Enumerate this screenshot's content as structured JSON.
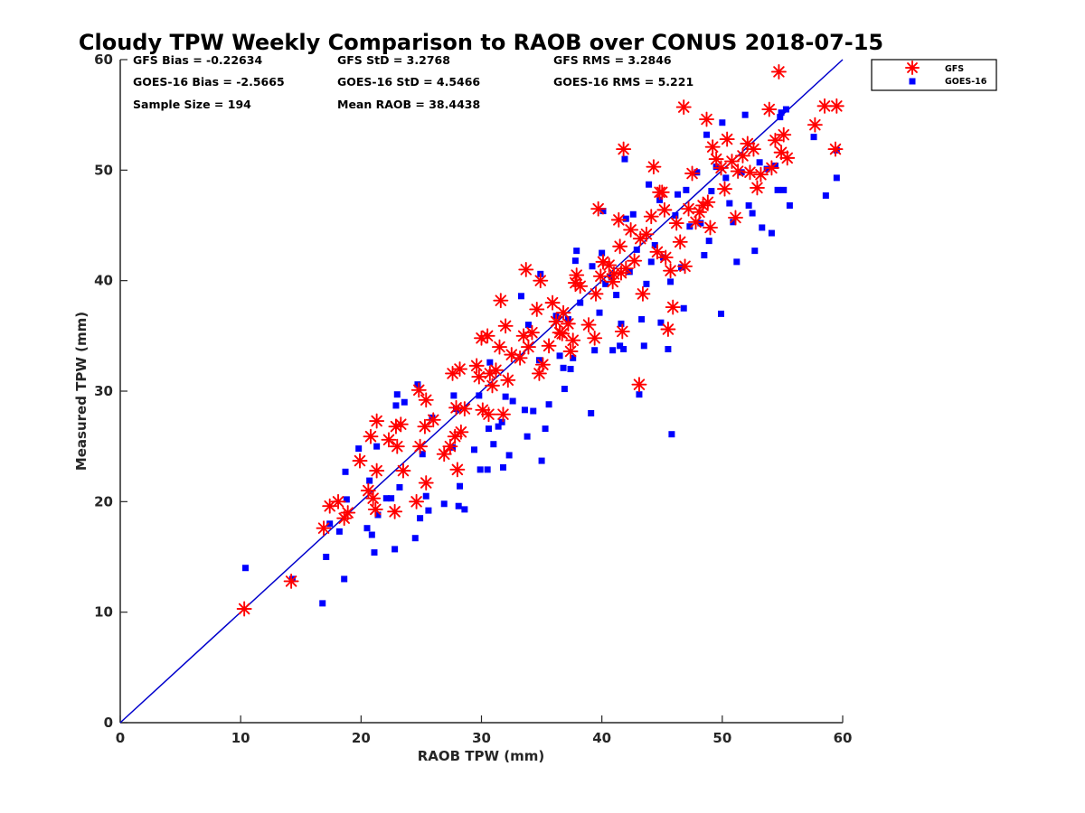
{
  "stats": {
    "gfs_bias": "GFS Bias = -0.22634",
    "gfs_std": "GFS StD = 3.2768",
    "gfs_rms": "GFS RMS = 3.2846",
    "goes_bias": "GOES-16 Bias = -2.5665",
    "goes_std": "GOES-16 StD = 4.5466",
    "goes_rms": "GOES-16 RMS = 5.221",
    "sample_size": "Sample Size = 194",
    "mean_raob": "Mean RAOB = 38.4438"
  },
  "colors": {
    "gfs": "#ff0000",
    "goes": "#0000ff",
    "line": "#0000cc",
    "axis": "#262626"
  },
  "chart_data": {
    "type": "scatter",
    "title": "Cloudy TPW Weekly Comparison to RAOB over CONUS 2018-07-15",
    "xlabel": "RAOB TPW (mm)",
    "ylabel": "Measured TPW (mm)",
    "xlim": [
      0,
      60
    ],
    "ylim": [
      0,
      60
    ],
    "xticks": [
      0,
      10,
      20,
      30,
      40,
      50,
      60
    ],
    "yticks": [
      0,
      10,
      20,
      30,
      40,
      50,
      60
    ],
    "grid": false,
    "legend_position": "top-right, outside plot area",
    "reference_line": {
      "from": [
        0,
        0
      ],
      "to": [
        60,
        60
      ],
      "label": "1:1"
    },
    "series": [
      {
        "name": "GFS",
        "marker": "asterisk",
        "color": "#ff0000",
        "points": [
          [
            10.3,
            10.3
          ],
          [
            14.2,
            12.8
          ],
          [
            16.9,
            17.6
          ],
          [
            17.4,
            19.6
          ],
          [
            18.1,
            20.0
          ],
          [
            18.6,
            18.5
          ],
          [
            18.9,
            19.0
          ],
          [
            19.9,
            23.7
          ],
          [
            20.6,
            21.0
          ],
          [
            20.8,
            25.9
          ],
          [
            21.0,
            20.3
          ],
          [
            21.2,
            19.3
          ],
          [
            21.3,
            27.3
          ],
          [
            21.3,
            22.8
          ],
          [
            22.3,
            25.6
          ],
          [
            22.8,
            19.1
          ],
          [
            22.9,
            26.8
          ],
          [
            23.0,
            25.0
          ],
          [
            23.3,
            27.0
          ],
          [
            23.5,
            22.8
          ],
          [
            24.6,
            20.0
          ],
          [
            24.8,
            30.1
          ],
          [
            24.9,
            25.0
          ],
          [
            25.3,
            26.8
          ],
          [
            25.4,
            29.2
          ],
          [
            25.4,
            21.7
          ],
          [
            26.0,
            27.4
          ],
          [
            26.9,
            24.3
          ],
          [
            27.4,
            25.0
          ],
          [
            27.6,
            31.6
          ],
          [
            27.8,
            25.9
          ],
          [
            27.9,
            28.5
          ],
          [
            28.0,
            22.9
          ],
          [
            28.2,
            32.0
          ],
          [
            28.3,
            26.3
          ],
          [
            28.6,
            28.4
          ],
          [
            29.6,
            32.3
          ],
          [
            29.8,
            31.3
          ],
          [
            30.0,
            34.8
          ],
          [
            30.1,
            28.3
          ],
          [
            30.5,
            35.0
          ],
          [
            30.6,
            27.9
          ],
          [
            30.7,
            31.6
          ],
          [
            30.9,
            30.5
          ],
          [
            31.2,
            31.9
          ],
          [
            31.5,
            34.0
          ],
          [
            31.6,
            38.2
          ],
          [
            31.8,
            27.9
          ],
          [
            32.0,
            35.9
          ],
          [
            32.2,
            31.0
          ],
          [
            32.5,
            33.3
          ],
          [
            33.2,
            33.0
          ],
          [
            33.5,
            35.0
          ],
          [
            33.7,
            41.0
          ],
          [
            33.9,
            34.0
          ],
          [
            34.2,
            35.3
          ],
          [
            34.6,
            37.4
          ],
          [
            34.8,
            31.6
          ],
          [
            34.9,
            40.0
          ],
          [
            35.1,
            32.4
          ],
          [
            35.6,
            34.1
          ],
          [
            35.9,
            38.0
          ],
          [
            36.2,
            36.3
          ],
          [
            36.5,
            35.3
          ],
          [
            36.7,
            35.2
          ],
          [
            36.8,
            37.1
          ],
          [
            37.2,
            36.1
          ],
          [
            37.4,
            33.6
          ],
          [
            37.6,
            34.6
          ],
          [
            37.8,
            39.8
          ],
          [
            37.9,
            40.5
          ],
          [
            38.2,
            39.5
          ],
          [
            38.9,
            36.0
          ],
          [
            39.4,
            34.8
          ],
          [
            39.5,
            38.8
          ],
          [
            39.7,
            46.5
          ],
          [
            39.9,
            40.4
          ],
          [
            40.1,
            41.7
          ],
          [
            40.6,
            41.4
          ],
          [
            40.9,
            39.9
          ],
          [
            41.0,
            40.6
          ],
          [
            41.4,
            45.5
          ],
          [
            41.5,
            43.1
          ],
          [
            41.6,
            40.7
          ],
          [
            41.7,
            35.4
          ],
          [
            41.8,
            51.9
          ],
          [
            42.0,
            41.1
          ],
          [
            42.4,
            44.6
          ],
          [
            42.7,
            41.8
          ],
          [
            43.1,
            30.6
          ],
          [
            43.2,
            43.8
          ],
          [
            43.4,
            38.8
          ],
          [
            43.7,
            44.2
          ],
          [
            44.1,
            45.8
          ],
          [
            44.3,
            50.3
          ],
          [
            44.6,
            42.6
          ],
          [
            44.8,
            48.0
          ],
          [
            45.0,
            48.0
          ],
          [
            45.2,
            46.4
          ],
          [
            45.3,
            42.1
          ],
          [
            45.5,
            35.6
          ],
          [
            45.7,
            40.9
          ],
          [
            45.9,
            37.6
          ],
          [
            46.2,
            45.2
          ],
          [
            46.5,
            43.5
          ],
          [
            46.8,
            55.7
          ],
          [
            46.9,
            41.3
          ],
          [
            47.2,
            46.5
          ],
          [
            47.5,
            49.7
          ],
          [
            47.8,
            45.3
          ],
          [
            48.1,
            46.2
          ],
          [
            48.4,
            46.8
          ],
          [
            48.7,
            54.6
          ],
          [
            48.8,
            47.1
          ],
          [
            49.0,
            44.8
          ],
          [
            49.2,
            52.1
          ],
          [
            49.5,
            51.0
          ],
          [
            49.9,
            50.2
          ],
          [
            50.2,
            48.3
          ],
          [
            50.4,
            52.8
          ],
          [
            50.8,
            50.8
          ],
          [
            51.1,
            45.7
          ],
          [
            51.3,
            49.9
          ],
          [
            51.7,
            51.3
          ],
          [
            52.1,
            52.4
          ],
          [
            52.3,
            49.8
          ],
          [
            52.6,
            51.9
          ],
          [
            52.9,
            48.4
          ],
          [
            53.2,
            49.6
          ],
          [
            53.9,
            55.5
          ],
          [
            54.1,
            50.2
          ],
          [
            54.4,
            52.7
          ],
          [
            54.7,
            58.9
          ],
          [
            54.9,
            51.6
          ],
          [
            55.1,
            53.2
          ],
          [
            55.4,
            51.1
          ],
          [
            57.7,
            54.1
          ],
          [
            58.5,
            55.8
          ],
          [
            59.5,
            55.8
          ],
          [
            59.4,
            51.9
          ]
        ]
      },
      {
        "name": "GOES-16",
        "marker": "square",
        "color": "#0000ff",
        "points": [
          [
            10.4,
            14.0
          ],
          [
            14.3,
            13.0
          ],
          [
            16.8,
            10.8
          ],
          [
            17.1,
            15.0
          ],
          [
            17.4,
            18.0
          ],
          [
            18.2,
            17.3
          ],
          [
            18.6,
            13.0
          ],
          [
            18.7,
            22.7
          ],
          [
            18.8,
            20.2
          ],
          [
            19.8,
            24.8
          ],
          [
            20.5,
            17.6
          ],
          [
            20.7,
            21.9
          ],
          [
            20.9,
            17.0
          ],
          [
            21.1,
            15.4
          ],
          [
            21.3,
            25.0
          ],
          [
            21.4,
            18.8
          ],
          [
            22.1,
            20.3
          ],
          [
            22.5,
            20.3
          ],
          [
            22.8,
            15.7
          ],
          [
            22.9,
            28.7
          ],
          [
            23.0,
            29.7
          ],
          [
            23.2,
            21.3
          ],
          [
            23.6,
            29.0
          ],
          [
            24.5,
            16.7
          ],
          [
            24.7,
            30.6
          ],
          [
            24.9,
            18.5
          ],
          [
            25.1,
            24.3
          ],
          [
            25.4,
            20.5
          ],
          [
            25.6,
            19.2
          ],
          [
            25.9,
            27.6
          ],
          [
            26.9,
            19.8
          ],
          [
            27.6,
            24.9
          ],
          [
            27.7,
            29.6
          ],
          [
            27.9,
            28.4
          ],
          [
            28.1,
            19.6
          ],
          [
            28.2,
            21.4
          ],
          [
            28.6,
            19.3
          ],
          [
            29.4,
            24.7
          ],
          [
            29.8,
            29.6
          ],
          [
            29.9,
            22.9
          ],
          [
            30.5,
            22.9
          ],
          [
            30.6,
            26.6
          ],
          [
            30.7,
            32.6
          ],
          [
            31.0,
            25.2
          ],
          [
            31.4,
            26.8
          ],
          [
            31.7,
            27.2
          ],
          [
            31.8,
            23.1
          ],
          [
            32.0,
            29.5
          ],
          [
            32.3,
            24.2
          ],
          [
            32.6,
            29.1
          ],
          [
            33.3,
            38.6
          ],
          [
            33.6,
            28.3
          ],
          [
            33.8,
            25.9
          ],
          [
            33.9,
            36.0
          ],
          [
            34.3,
            28.2
          ],
          [
            34.8,
            32.8
          ],
          [
            34.9,
            40.6
          ],
          [
            35.0,
            23.7
          ],
          [
            35.3,
            26.6
          ],
          [
            35.6,
            28.8
          ],
          [
            36.2,
            36.8
          ],
          [
            36.5,
            33.2
          ],
          [
            36.8,
            32.1
          ],
          [
            36.9,
            30.2
          ],
          [
            37.2,
            36.5
          ],
          [
            37.4,
            32.0
          ],
          [
            37.6,
            33.0
          ],
          [
            37.8,
            41.8
          ],
          [
            37.9,
            42.7
          ],
          [
            38.2,
            38.0
          ],
          [
            39.1,
            28.0
          ],
          [
            39.2,
            41.3
          ],
          [
            39.4,
            33.7
          ],
          [
            39.8,
            37.1
          ],
          [
            40.0,
            42.5
          ],
          [
            40.1,
            46.3
          ],
          [
            40.3,
            39.7
          ],
          [
            40.8,
            40.3
          ],
          [
            40.9,
            33.7
          ],
          [
            41.2,
            38.7
          ],
          [
            41.5,
            34.1
          ],
          [
            41.6,
            36.1
          ],
          [
            41.8,
            33.8
          ],
          [
            41.9,
            51.0
          ],
          [
            42.0,
            45.6
          ],
          [
            42.3,
            40.8
          ],
          [
            42.6,
            46.0
          ],
          [
            42.9,
            42.8
          ],
          [
            43.1,
            29.7
          ],
          [
            43.3,
            36.5
          ],
          [
            43.5,
            34.1
          ],
          [
            43.7,
            39.7
          ],
          [
            43.9,
            48.7
          ],
          [
            44.1,
            41.7
          ],
          [
            44.4,
            43.2
          ],
          [
            44.8,
            47.3
          ],
          [
            44.9,
            36.2
          ],
          [
            45.1,
            42.1
          ],
          [
            45.5,
            33.8
          ],
          [
            45.7,
            39.9
          ],
          [
            45.8,
            26.1
          ],
          [
            46.1,
            45.9
          ],
          [
            46.3,
            47.8
          ],
          [
            46.6,
            41.2
          ],
          [
            46.8,
            37.5
          ],
          [
            47.0,
            48.2
          ],
          [
            47.3,
            44.9
          ],
          [
            47.9,
            49.8
          ],
          [
            48.2,
            45.2
          ],
          [
            48.5,
            42.3
          ],
          [
            48.7,
            53.2
          ],
          [
            48.9,
            43.6
          ],
          [
            49.1,
            48.1
          ],
          [
            49.5,
            50.3
          ],
          [
            49.9,
            37.0
          ],
          [
            50.0,
            54.3
          ],
          [
            50.3,
            49.3
          ],
          [
            50.6,
            47.0
          ],
          [
            50.9,
            45.3
          ],
          [
            51.2,
            41.7
          ],
          [
            51.6,
            49.8
          ],
          [
            51.9,
            55.0
          ],
          [
            52.2,
            46.8
          ],
          [
            52.5,
            46.1
          ],
          [
            52.7,
            42.7
          ],
          [
            53.1,
            50.7
          ],
          [
            53.3,
            44.8
          ],
          [
            53.7,
            50.1
          ],
          [
            54.1,
            44.3
          ],
          [
            54.4,
            50.4
          ],
          [
            54.6,
            48.2
          ],
          [
            54.9,
            55.2
          ],
          [
            55.1,
            48.2
          ],
          [
            55.3,
            55.5
          ],
          [
            55.6,
            46.8
          ],
          [
            57.6,
            53.0
          ],
          [
            58.6,
            47.7
          ],
          [
            59.5,
            49.3
          ],
          [
            59.5,
            51.8
          ],
          [
            54.8,
            54.8
          ]
        ]
      }
    ]
  }
}
